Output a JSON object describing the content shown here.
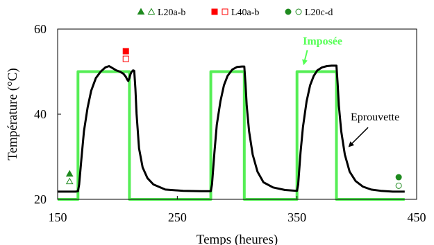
{
  "chart_data": {
    "type": "line",
    "xlabel": "Temps (heures)",
    "ylabel": "Température (°C)",
    "xlim": [
      150,
      450
    ],
    "ylim": [
      20,
      60
    ],
    "xticks": [
      150,
      250,
      350,
      450
    ],
    "yticks": [
      20,
      40,
      60
    ],
    "grid": false,
    "legend_position": "top-center",
    "legend": [
      {
        "label": "L20a-b",
        "color": "#1e8a1e",
        "symbols": [
          "filled-triangle",
          "open-triangle"
        ]
      },
      {
        "label": "L40a-b",
        "color": "#ff0000",
        "symbols": [
          "filled-square",
          "open-square"
        ]
      },
      {
        "label": "L20c-d",
        "color": "#1e8a1e",
        "symbols": [
          "filled-circle",
          "open-circle"
        ]
      }
    ],
    "series": [
      {
        "name": "Imposée",
        "color": "#55ee55",
        "x": [
          150,
          167,
          167,
          210,
          210,
          278,
          278,
          306,
          306,
          350,
          350,
          383,
          383,
          440
        ],
        "y": [
          20,
          20,
          50,
          50,
          20,
          20,
          50,
          50,
          20,
          20,
          50,
          50,
          20,
          20
        ]
      },
      {
        "name": "Eprouvette",
        "color": "#000000",
        "x": [
          150,
          160,
          165,
          167,
          168,
          170,
          172,
          175,
          178,
          182,
          186,
          190,
          193,
          196,
          199,
          202,
          205,
          207,
          208,
          209,
          210,
          211,
          212,
          213,
          214,
          215,
          216,
          218,
          221,
          225,
          230,
          240,
          255,
          270,
          278,
          279,
          281,
          283,
          286,
          289,
          292,
          296,
          300,
          304,
          306,
          307,
          308,
          310,
          313,
          317,
          322,
          330,
          340,
          350,
          351,
          353,
          355,
          358,
          361,
          364,
          367,
          371,
          375,
          379,
          383,
          384,
          385,
          387,
          390,
          394,
          399,
          405,
          412,
          420,
          430,
          440
        ],
        "y": [
          21.8,
          21.8,
          21.8,
          21.9,
          23.5,
          30,
          36,
          41.5,
          45.5,
          48.5,
          50,
          51,
          51.3,
          50.8,
          50.3,
          50,
          49.5,
          48.8,
          48.2,
          47.8,
          48.5,
          49.5,
          50,
          50.3,
          50.2,
          46,
          40,
          32,
          27.5,
          25,
          23.5,
          22.3,
          22,
          21.9,
          21.9,
          23.5,
          31,
          37.5,
          43,
          46.8,
          49,
          50.5,
          51.1,
          51.2,
          51.2,
          47,
          42,
          36,
          30.5,
          26.5,
          24,
          22.8,
          22.2,
          22,
          23.5,
          31,
          37,
          43,
          46.8,
          49,
          50.3,
          51,
          51.3,
          51.4,
          51.4,
          47,
          42,
          36,
          30.5,
          26.5,
          24.3,
          23,
          22.3,
          22,
          21.8,
          21.8
        ]
      }
    ],
    "markers": [
      {
        "series": "L20a-b",
        "symbol": "filled-triangle",
        "color": "#1e8a1e",
        "x": 160,
        "y": 26
      },
      {
        "series": "L20a-b",
        "symbol": "open-triangle",
        "color": "#1e8a1e",
        "x": 160,
        "y": 24.2
      },
      {
        "series": "L40a-b",
        "symbol": "filled-square",
        "color": "#ff0000",
        "x": 207,
        "y": 54.8
      },
      {
        "series": "L40a-b",
        "symbol": "open-square",
        "color": "#ff0000",
        "x": 207,
        "y": 53
      },
      {
        "series": "L20c-d",
        "symbol": "filled-circle",
        "color": "#1e8a1e",
        "x": 435,
        "y": 25.2
      },
      {
        "series": "L20c-d",
        "symbol": "open-circle",
        "color": "#1e8a1e",
        "x": 435,
        "y": 23.2
      }
    ],
    "annotations": [
      {
        "text": "Imposée",
        "color": "#55ff55",
        "target_x": 354,
        "target_y": 51
      },
      {
        "text": "Eprouvette",
        "color": "#000000",
        "target_x": 392,
        "target_y": 32
      }
    ]
  }
}
